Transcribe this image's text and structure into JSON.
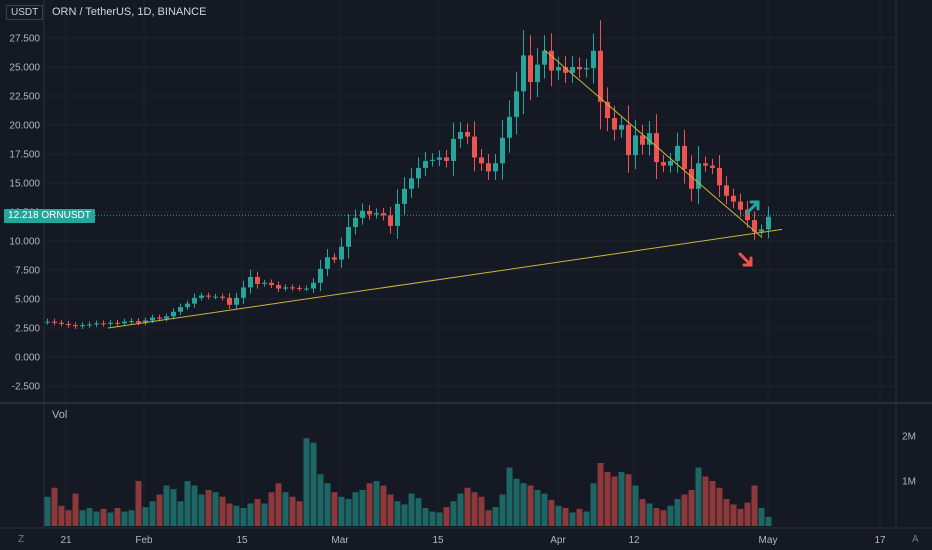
{
  "header": {
    "currency_tag": "USDT",
    "symbol_line": "ORN / TetherUS, 1D, BINANCE"
  },
  "price_tag": {
    "value": "12.218",
    "ticker": "ORNUSDT"
  },
  "volume_pane": {
    "label": "Vol",
    "ticks": [
      "2M",
      "1M"
    ]
  },
  "corner": {
    "left": "Z",
    "right": "A"
  },
  "colors": {
    "up": "#26a69a",
    "down": "#ef5350",
    "trendline": "#c8b53a",
    "background": "#151924"
  },
  "chart_data": {
    "type": "candlestick",
    "y_ticks": [
      "27.500",
      "25.000",
      "22.500",
      "20.000",
      "17.500",
      "15.000",
      "12.500",
      "10.000",
      "7.500",
      "5.000",
      "2.500",
      "0.000",
      "-2.500"
    ],
    "ylim": [
      -3.8,
      30.5
    ],
    "x_ticks": [
      "21",
      "Feb",
      "15",
      "Mar",
      "15",
      "Apr",
      "12",
      "May",
      "17"
    ],
    "last_price": 12.218,
    "series_close": [
      3.05,
      2.95,
      2.85,
      2.75,
      2.65,
      2.75,
      2.8,
      2.9,
      2.85,
      2.95,
      2.9,
      3.05,
      3.1,
      2.95,
      3.15,
      3.4,
      3.3,
      3.5,
      3.9,
      4.3,
      4.6,
      5.1,
      5.3,
      5.2,
      5.2,
      5.1,
      4.5,
      5.1,
      6.0,
      6.9,
      6.3,
      6.4,
      6.2,
      5.9,
      6.0,
      5.95,
      5.9,
      5.9,
      6.4,
      7.6,
      8.6,
      8.4,
      9.5,
      11.2,
      12.0,
      12.6,
      12.3,
      12.4,
      12.2,
      11.3,
      13.2,
      14.5,
      15.4,
      16.3,
      16.9,
      17.0,
      17.2,
      16.9,
      18.8,
      19.4,
      19.0,
      17.2,
      16.7,
      16.0,
      16.7,
      18.9,
      20.7,
      22.9,
      26.0,
      23.7,
      25.2,
      26.4,
      24.7,
      25.0,
      24.5,
      25.0,
      24.8,
      24.9,
      26.4,
      22.0,
      20.6,
      19.6,
      20.0,
      17.4,
      19.1,
      18.3,
      19.3,
      16.8,
      16.5,
      16.9,
      18.2,
      16.2,
      14.5,
      16.7,
      16.5,
      16.3,
      14.8,
      13.9,
      13.4,
      12.7,
      11.8,
      10.8,
      11.0,
      12.1
    ],
    "volume_millions": [
      0.65,
      0.85,
      0.45,
      0.35,
      0.72,
      0.35,
      0.4,
      0.32,
      0.38,
      0.3,
      0.4,
      0.32,
      0.35,
      1.0,
      0.42,
      0.55,
      0.7,
      0.9,
      0.82,
      0.55,
      1.0,
      0.9,
      0.7,
      0.8,
      0.75,
      0.65,
      0.5,
      0.45,
      0.4,
      0.5,
      0.6,
      0.5,
      0.75,
      0.95,
      0.75,
      0.65,
      0.55,
      1.95,
      1.85,
      1.15,
      0.95,
      0.75,
      0.65,
      0.6,
      0.75,
      0.8,
      0.95,
      1.0,
      0.9,
      0.7,
      0.55,
      0.48,
      0.72,
      0.62,
      0.4,
      0.32,
      0.3,
      0.42,
      0.55,
      0.72,
      0.85,
      0.75,
      0.65,
      0.35,
      0.42,
      0.7,
      1.3,
      1.05,
      0.95,
      0.9,
      0.8,
      0.72,
      0.58,
      0.45,
      0.4,
      0.3,
      0.38,
      0.32,
      0.95,
      1.4,
      1.2,
      1.1,
      1.2,
      1.15,
      0.9,
      0.6,
      0.5,
      0.4,
      0.35,
      0.45,
      0.6,
      0.7,
      0.8,
      1.3,
      1.1,
      1.0,
      0.85,
      0.6,
      0.48,
      0.38,
      0.52,
      0.9,
      0.4,
      0.2
    ],
    "trendlines": [
      {
        "from": [
          "Jan 27",
          2.5
        ],
        "to": [
          "May 1",
          11.0
        ]
      },
      {
        "from": [
          "Mar 31",
          26.5
        ],
        "to": [
          "Apr 29",
          10.3
        ]
      }
    ],
    "arrows": [
      {
        "direction": "up",
        "color": "#26a69a"
      },
      {
        "direction": "down",
        "color": "#ef5350"
      }
    ],
    "grid": true
  }
}
